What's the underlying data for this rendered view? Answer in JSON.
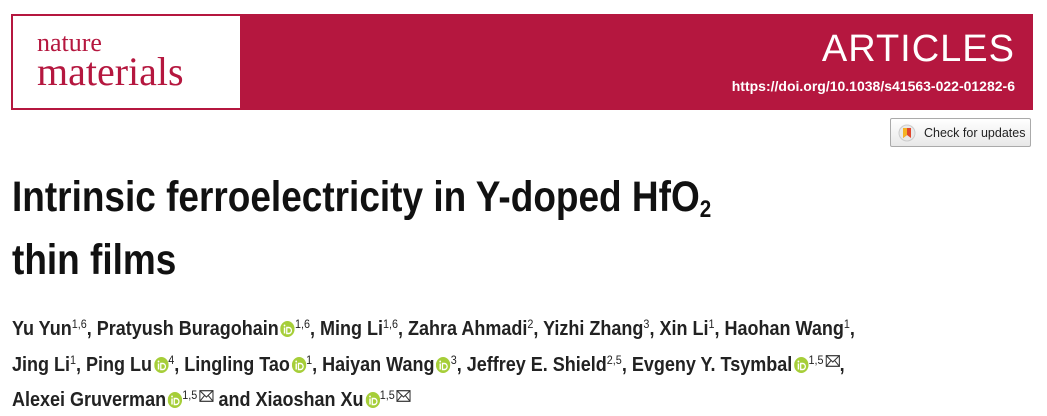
{
  "header": {
    "journal_top": "nature",
    "journal_bottom": "materials",
    "section": "ARTICLES",
    "doi": "https://doi.org/10.1038/s41563-022-01282-6"
  },
  "badge": "Check for updates",
  "title": {
    "main": "Intrinsic ferroelectricity in Y-doped HfO",
    "subscript": "2",
    "rest": "thin films"
  },
  "separator": ",",
  "conjunction": "and",
  "authors": [
    {
      "name": "Yu Yun",
      "affiliations": "1,6",
      "orcid": false,
      "email": false
    },
    {
      "name": "Pratyush Buragohain",
      "affiliations": "1,6",
      "orcid": true,
      "email": false
    },
    {
      "name": "Ming Li",
      "affiliations": "1,6",
      "orcid": false,
      "email": false
    },
    {
      "name": "Zahra Ahmadi",
      "affiliations": "2",
      "orcid": false,
      "email": false
    },
    {
      "name": "Yizhi Zhang",
      "affiliations": "3",
      "orcid": false,
      "email": false
    },
    {
      "name": "Xin Li",
      "affiliations": "1",
      "orcid": false,
      "email": false
    },
    {
      "name": "Haohan Wang",
      "affiliations": "1",
      "orcid": false,
      "email": false
    },
    {
      "name": "Jing Li",
      "affiliations": "1",
      "orcid": false,
      "email": false
    },
    {
      "name": "Ping Lu",
      "affiliations": "4",
      "orcid": true,
      "email": false
    },
    {
      "name": "Lingling Tao",
      "affiliations": "1",
      "orcid": true,
      "email": false
    },
    {
      "name": "Haiyan Wang",
      "affiliations": "3",
      "orcid": true,
      "email": false
    },
    {
      "name": "Jeffrey E. Shield",
      "affiliations": "2,5",
      "orcid": false,
      "email": false
    },
    {
      "name": "Evgeny Y. Tsymbal",
      "affiliations": "1,5",
      "orcid": true,
      "email": true
    },
    {
      "name": "Alexei Gruverman",
      "affiliations": "1,5",
      "orcid": true,
      "email": true
    },
    {
      "name": "Xiaoshan Xu",
      "affiliations": "1,5",
      "orcid": true,
      "email": true
    }
  ]
}
